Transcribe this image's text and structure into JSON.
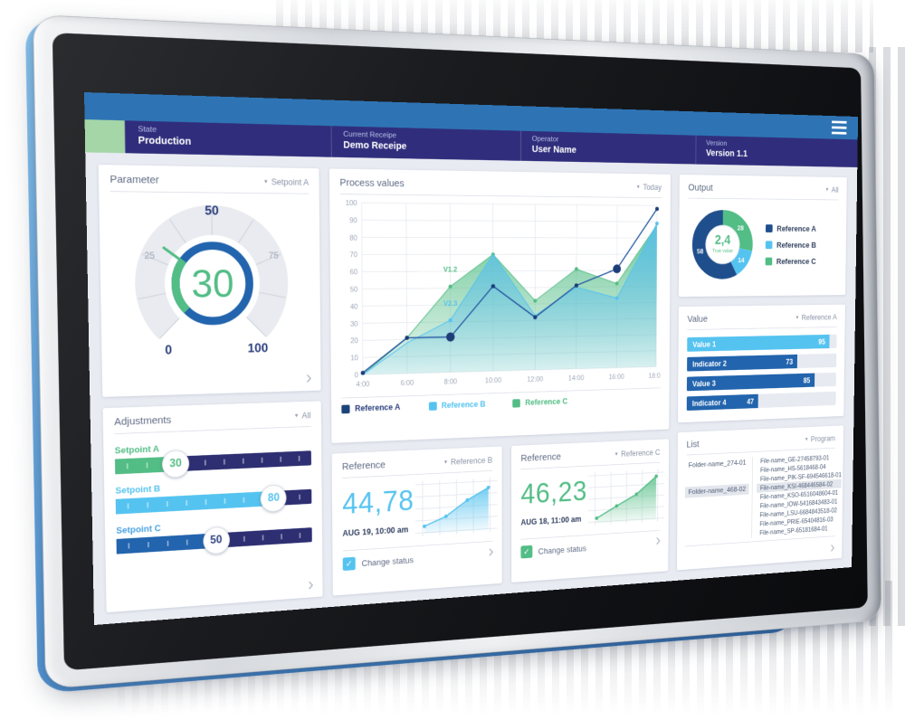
{
  "glyphs": {
    "caret": "▾",
    "chevron_right": "›",
    "check": "✓"
  },
  "colors": {
    "top_strip": "#2e74b5",
    "header_bar": "#302e7c",
    "green_block": "#a5d6a7",
    "body_bg": "#e9ebf2",
    "accent_blue": "#2264ad",
    "light_blue": "#55c3f0",
    "green": "#52bd85",
    "navy": "#1d3c78",
    "title_text": "#5f6b85",
    "muted_text": "#8a94a8",
    "dark_text": "#2e3d5e",
    "slider_track": "#2e2f72"
  },
  "header": {
    "sections": [
      {
        "label": "State",
        "value": "Production"
      },
      {
        "label": "Current Receipe",
        "value": "Demo Receipe"
      },
      {
        "label": "Operator",
        "value": "User Name"
      },
      {
        "label": "Version",
        "value": "Version 1.1"
      }
    ]
  },
  "parameter_card": {
    "title": "Parameter",
    "filter": "Setpoint A",
    "gauge": {
      "value": 30,
      "min": 0,
      "max": 100,
      "tick_labels": [
        "0",
        "25",
        "50",
        "75",
        "100"
      ]
    }
  },
  "adjustments_card": {
    "title": "Adjustments",
    "filter": "All",
    "sliders": [
      {
        "label": "Setpoint A",
        "value": 30,
        "color": "#52bd85",
        "label_color": "#52bd85",
        "value_color": "#52bd85"
      },
      {
        "label": "Setpoint B",
        "value": 80,
        "color": "#55c3f0",
        "label_color": "#55c3f0",
        "value_color": "#55c3f0"
      },
      {
        "label": "Setpoint C",
        "value": 50,
        "color": "#2264ad",
        "label_color": "#4aa3e0",
        "value_color": "#2b3f7e"
      }
    ]
  },
  "process_card": {
    "title": "Process values",
    "filter": "Today",
    "legend": [
      {
        "label": "Reference A",
        "swatch": "#1d4479",
        "text": "#2b3f7e"
      },
      {
        "label": "Reference B",
        "swatch": "#55c3f0",
        "text": "#55c3f0"
      },
      {
        "label": "Reference C",
        "swatch": "#52bd85",
        "text": "#52bd85"
      }
    ]
  },
  "output_card": {
    "title": "Output",
    "filter": "All",
    "center_value": "2,4",
    "center_label": "True value",
    "legend": [
      {
        "label": "Reference A",
        "swatch": "#1f4e8c"
      },
      {
        "label": "Reference B",
        "swatch": "#55c3f0"
      },
      {
        "label": "Reference C",
        "swatch": "#52bd85"
      }
    ]
  },
  "value_card": {
    "title": "Value",
    "filter": "Reference A"
  },
  "reference_cards": [
    {
      "title": "Reference",
      "filter": "Reference B",
      "value": "44,78",
      "timestamp": "AUG 19, 10:00 am",
      "checkbox_label": "Change status",
      "checked": true,
      "accent": "#55c3f0"
    },
    {
      "title": "Reference",
      "filter": "Reference C",
      "value": "46,23",
      "timestamp": "AUG 18, 11:00 am",
      "checkbox_label": "Change status",
      "checked": true,
      "accent": "#52bd85"
    }
  ],
  "list_card": {
    "title": "List",
    "filter": "Program",
    "folders": [
      {
        "name": "Folder-name_274-01",
        "selected": false
      },
      {
        "name": "Folder-name_468-02",
        "selected": true
      }
    ],
    "files": [
      {
        "name": "File-name_GE-27458793-01",
        "selected": false
      },
      {
        "name": "File-name_HS-5618468-04",
        "selected": false
      },
      {
        "name": "File-name_PIK-SF-694546618-01",
        "selected": false
      },
      {
        "name": "File-name_KSI-468446584-02",
        "selected": true
      },
      {
        "name": "File-name_KSO-6516048604-01",
        "selected": false
      },
      {
        "name": "File-name_IOW-5416843483-01",
        "selected": false
      },
      {
        "name": "File-name_LSU-6684843518-02",
        "selected": false
      },
      {
        "name": "File-name_PRIE-65404816-03",
        "selected": false
      },
      {
        "name": "File-name_SP-65181684-01",
        "selected": false
      }
    ]
  },
  "chart_data": [
    {
      "id": "process-values",
      "type": "area",
      "title": "Process values",
      "x": [
        "4:00",
        "6:00",
        "8:00",
        "10:00",
        "12:00",
        "14:00",
        "16:00",
        "18:00"
      ],
      "ylim": [
        0,
        100
      ],
      "ytick_step": 10,
      "grid": true,
      "legend_position": "bottom",
      "series": [
        {
          "name": "Reference A",
          "type": "line",
          "color": "#2d5fa6",
          "dot_color": "#1d3c78",
          "values": [
            1,
            21,
            21,
            51,
            32,
            51,
            61,
            98
          ],
          "big_dots": [
            2,
            6
          ]
        },
        {
          "name": "Reference B",
          "type": "area",
          "color": "#55c3f0",
          "values": [
            0,
            18,
            31,
            70,
            33,
            50,
            43,
            89
          ],
          "dots": [
            2,
            6,
            7
          ]
        },
        {
          "name": "Reference C",
          "type": "area",
          "color": "#52bd85",
          "values": [
            0,
            21,
            51,
            70,
            42,
            61,
            52,
            88
          ],
          "dots": [
            2,
            3,
            4,
            5,
            6
          ]
        }
      ],
      "annotations": [
        {
          "text": "V1.2",
          "color": "#52bd85",
          "xi": 2,
          "y": 58
        },
        {
          "text": "V2.3",
          "color": "#55c3f0",
          "xi": 2,
          "y": 38
        }
      ]
    },
    {
      "id": "output-donut",
      "type": "pie",
      "center": {
        "value": "2,4",
        "label": "True value"
      },
      "segments": [
        {
          "name": "Reference C",
          "value": 28,
          "color": "#52bd85"
        },
        {
          "name": "Reference B",
          "value": 14,
          "color": "#55c3f0"
        },
        {
          "name": "Reference A",
          "value": 58,
          "color": "#1f4e8c"
        }
      ]
    },
    {
      "id": "value-bars",
      "type": "bar",
      "xlim": [
        0,
        100
      ],
      "bars": [
        {
          "label": "Value 1",
          "value": 95,
          "color": "#55c3f0"
        },
        {
          "label": "Indicator 2",
          "value": 73,
          "color": "#2264ad"
        },
        {
          "label": "Value 3",
          "value": 85,
          "color": "#2264ad"
        },
        {
          "label": "Indicator 4",
          "value": 47,
          "color": "#2264ad"
        }
      ]
    },
    {
      "id": "reference-spark-1",
      "type": "area",
      "color": "#55c3f0",
      "values": [
        15,
        32,
        62,
        85
      ]
    },
    {
      "id": "reference-spark-2",
      "type": "area",
      "color": "#52bd85",
      "values": [
        10,
        33,
        55,
        90
      ]
    }
  ]
}
